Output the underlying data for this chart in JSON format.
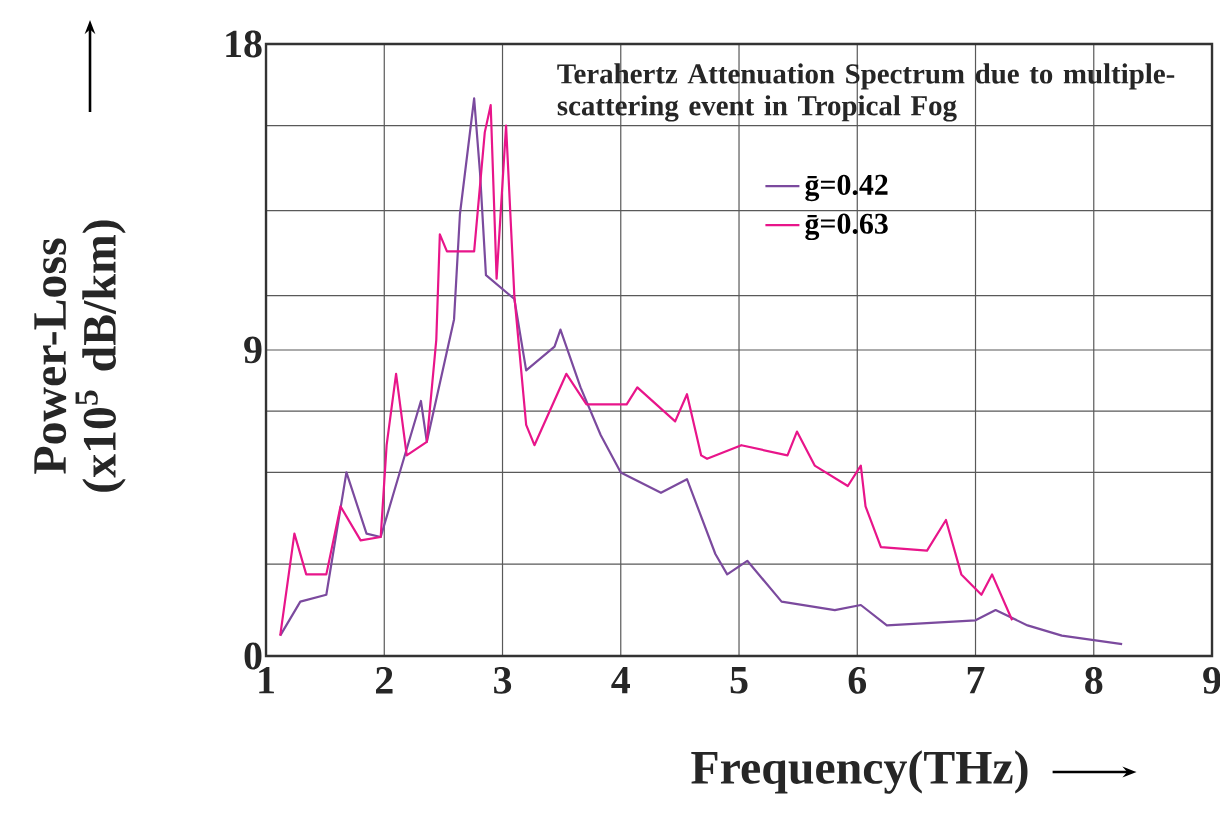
{
  "chart_data": {
    "type": "line",
    "title": "Terahertz Attenuation Spectrum due to multiple-scattering event in Tropical Fog",
    "xlabel": "Frequency(THz)",
    "ylabel": "Power-Loss (x10$^{5}$ dB/km)",
    "xlim": [
      1,
      9
    ],
    "xticks": [
      1,
      2,
      3,
      4,
      5,
      6,
      7,
      8,
      9
    ],
    "ylim": [
      0,
      18
    ],
    "yticks": [
      0,
      {
        "value": 2.7,
        "label": null
      },
      {
        "value": 5.4,
        "label": null
      },
      {
        "value": 7.2,
        "label": null
      },
      9,
      {
        "value": 10.6,
        "label": null
      },
      {
        "value": 13.1,
        "label": null
      },
      {
        "value": 15.6,
        "label": null
      },
      18
    ],
    "grid": true,
    "legend": "top right",
    "series": [
      {
        "name": "ḡ=0.42",
        "color": "#7b4a9e",
        "x": [
          1.12,
          1.29,
          1.51,
          1.68,
          1.85,
          1.97,
          2.08,
          2.31,
          2.36,
          2.59,
          2.64,
          2.76,
          2.81,
          2.86,
          3.1,
          3.2,
          3.44,
          3.49,
          3.66,
          3.83,
          4.0,
          4.34,
          4.56,
          4.8,
          4.9,
          5.07,
          5.36,
          5.81,
          6.03,
          6.25,
          7.0,
          7.17,
          7.44,
          7.73,
          8.24
        ],
        "values": [
          0.6,
          1.6,
          1.8,
          5.4,
          3.6,
          3.5,
          4.8,
          7.5,
          6.3,
          9.9,
          13.0,
          16.4,
          14.2,
          11.2,
          10.5,
          8.4,
          9.1,
          9.6,
          7.9,
          6.5,
          5.4,
          4.8,
          5.2,
          3.0,
          2.4,
          2.8,
          1.6,
          1.35,
          1.5,
          0.9,
          1.05,
          1.35,
          0.9,
          0.6,
          0.35
        ]
      },
      {
        "name": "ḡ=0.63",
        "color": "#e8158a",
        "x": [
          1.12,
          1.24,
          1.34,
          1.51,
          1.63,
          1.8,
          1.97,
          2.02,
          2.1,
          2.19,
          2.36,
          2.44,
          2.47,
          2.53,
          2.76,
          2.85,
          2.9,
          2.95,
          3.03,
          3.1,
          3.2,
          3.27,
          3.54,
          3.71,
          4.05,
          4.14,
          4.46,
          4.56,
          4.68,
          4.73,
          5.02,
          5.41,
          5.49,
          5.64,
          5.92,
          6.03,
          6.07,
          6.2,
          6.59,
          6.75,
          6.88,
          7.05,
          7.14,
          7.31
        ],
        "values": [
          0.6,
          3.6,
          2.4,
          2.4,
          4.4,
          3.4,
          3.5,
          6.2,
          8.3,
          5.9,
          6.3,
          9.3,
          12.4,
          11.9,
          11.9,
          15.4,
          16.2,
          11.1,
          15.6,
          10.6,
          6.8,
          6.2,
          8.3,
          7.4,
          7.4,
          7.9,
          6.9,
          7.7,
          5.9,
          5.8,
          6.2,
          5.9,
          6.6,
          5.6,
          5.0,
          5.6,
          4.4,
          3.2,
          3.1,
          4.0,
          2.4,
          1.8,
          2.4,
          1.05
        ]
      }
    ]
  }
}
